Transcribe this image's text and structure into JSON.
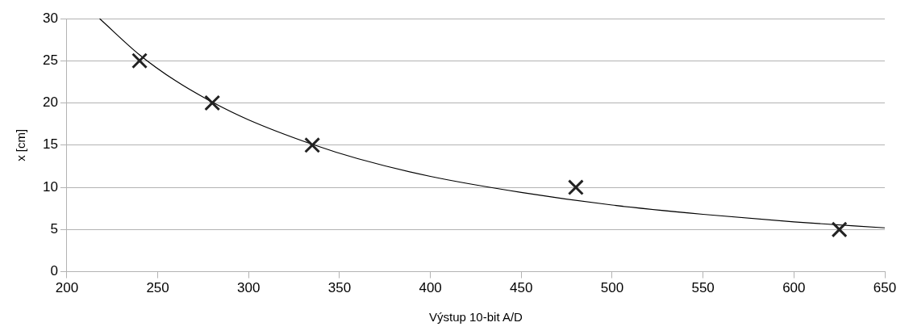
{
  "chart_data": {
    "type": "scatter",
    "xlabel": "Výstup 10-bit A/D",
    "ylabel": "x [cm]",
    "xlim": [
      200,
      650
    ],
    "xticks": [
      200,
      250,
      300,
      350,
      400,
      450,
      500,
      550,
      600,
      650
    ],
    "ylim": [
      0,
      30
    ],
    "yticks": [
      0,
      5,
      10,
      15,
      20,
      25,
      30
    ],
    "grid": "y",
    "legend": false,
    "series": [
      {
        "type": "scatter",
        "color": "#222222",
        "marker": "cross",
        "x": [
          240,
          280,
          335,
          480,
          625
        ],
        "values": [
          25,
          20,
          15,
          10,
          5
        ]
      },
      {
        "type": "line",
        "color": "#000000",
        "marker": "none",
        "line_style": "solid",
        "x": [
          218,
          240,
          260,
          280,
          300,
          335,
          360,
          400,
          450,
          500,
          550,
          600,
          650
        ],
        "values": [
          30,
          25.7,
          22.6,
          20.1,
          18,
          15.1,
          13.4,
          11.3,
          9.4,
          7.9,
          6.8,
          5.9,
          5.2
        ]
      }
    ]
  }
}
